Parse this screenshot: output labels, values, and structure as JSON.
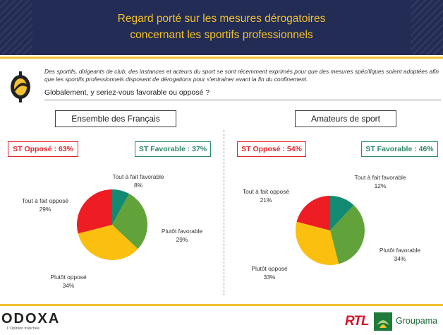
{
  "header": {
    "title_line1": "Regard porté sur les mesures dérogatoires",
    "title_line2": "concernant les sportifs professionnels"
  },
  "intro": {
    "text": "Des sportifs, dirigeants de club, des instances et acteurs du sport se sont récemment exprimés pour que des mesures spécifiques soient adoptées afin que les sportifs professionnels disposent de dérogations pour s'entrainer avant la fin du confinement.",
    "question": "Globalement, y seriez-vous favorable ou opposé ?"
  },
  "colors": {
    "header_bg": "#222c55",
    "accent": "#f2c230",
    "opposed_red": "#e3242b",
    "favorable_green": "#2c8a6c"
  },
  "chart_data": [
    {
      "type": "pie",
      "title": "Ensemble des Français",
      "summary": {
        "opposed": "ST Opposé : 63%",
        "favorable": "ST Favorable : 37%"
      },
      "categories": [
        "Tout à fait favorable",
        "Plutôt favorable",
        "Plutôt opposé",
        "Tout à fait opposé"
      ],
      "values": [
        8,
        29,
        34,
        29
      ],
      "value_labels": [
        "8%",
        "29%",
        "34%",
        "29%"
      ],
      "colors": [
        "#138a72",
        "#62a23a",
        "#fbbf0f",
        "#ee1c23"
      ]
    },
    {
      "type": "pie",
      "title": "Amateurs de sport",
      "summary": {
        "opposed": "ST Opposé : 54%",
        "favorable": "ST Favorable : 46%"
      },
      "categories": [
        "Tout à fait favorable",
        "Plutôt favorable",
        "Plutôt opposé",
        "Tout à fait opposé"
      ],
      "values": [
        12,
        34,
        33,
        21
      ],
      "value_labels": [
        "12%",
        "34%",
        "33%",
        "21%"
      ],
      "colors": [
        "#138a72",
        "#62a23a",
        "#fbbf0f",
        "#ee1c23"
      ]
    }
  ],
  "footer": {
    "brand": "ODOXA",
    "tagline": "L'Opinion tranchée",
    "partner1": "RTL",
    "partner2": "Groupama"
  }
}
